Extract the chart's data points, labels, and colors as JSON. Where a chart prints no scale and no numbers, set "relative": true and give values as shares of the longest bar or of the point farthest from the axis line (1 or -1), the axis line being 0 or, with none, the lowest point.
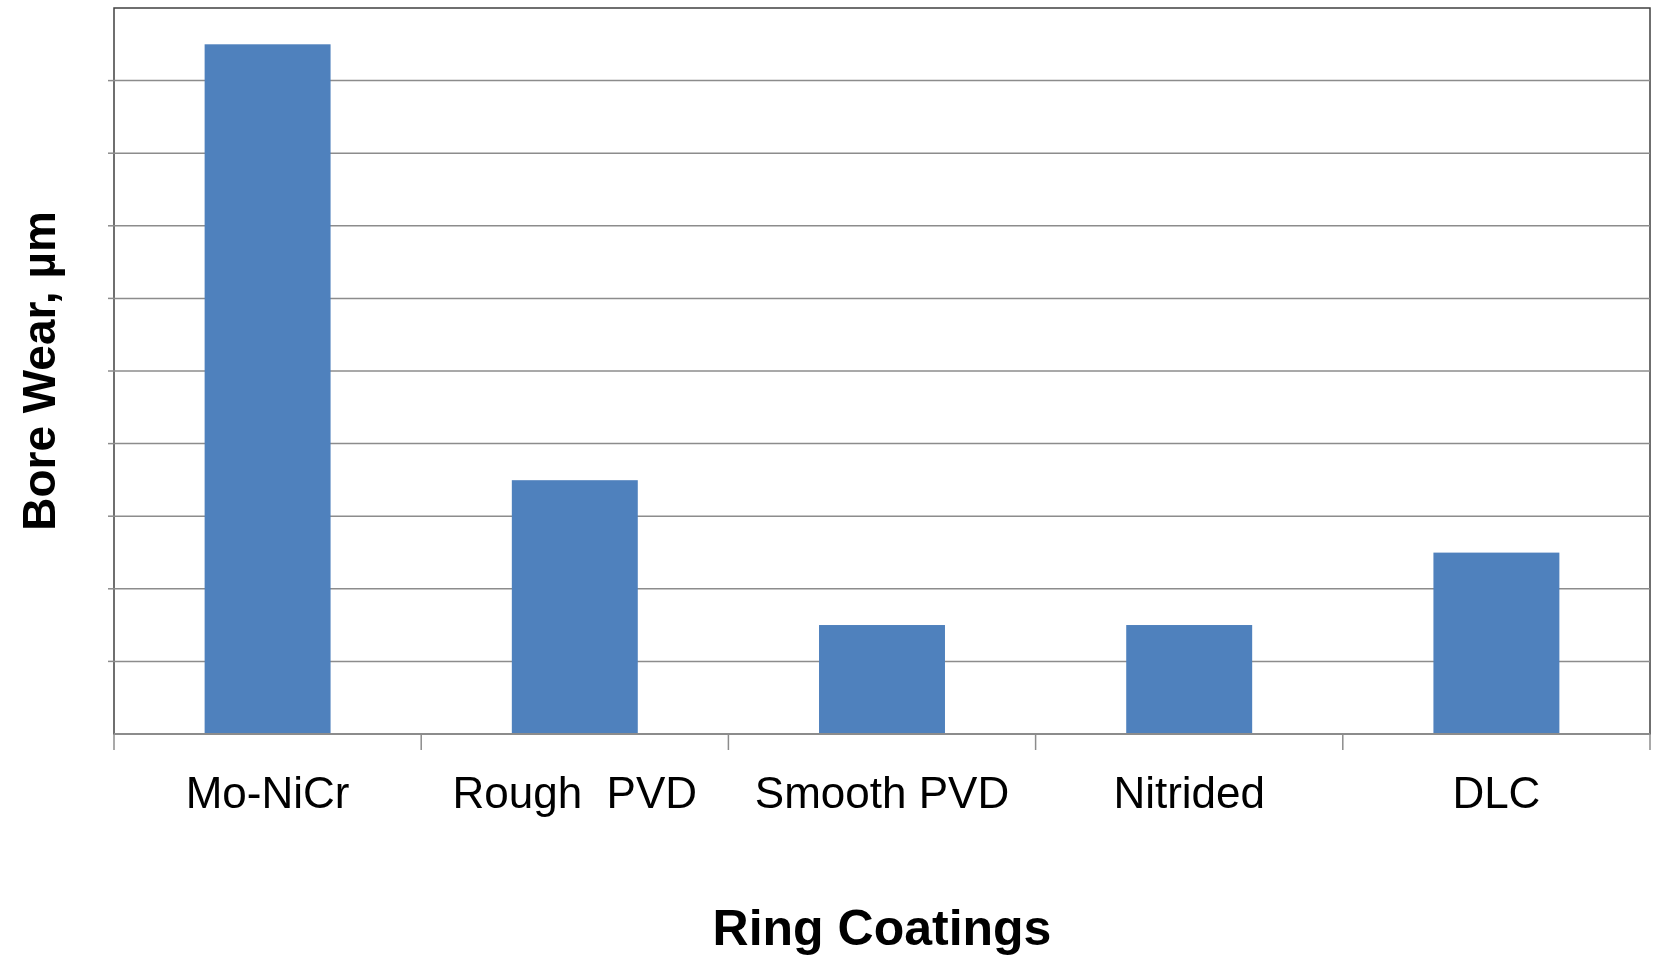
{
  "chart_data": {
    "type": "bar",
    "xlabel": "Ring Coatings",
    "ylabel": "Bore Wear, µm",
    "categories": [
      "Mo-NiCr",
      "Rough  PVD",
      "Smooth PVD",
      "Nitrided",
      "DLC"
    ],
    "values": [
      1,
      0.368,
      0.158,
      0.158,
      0.263
    ],
    "color": "#4f81bd",
    "relative": true,
    "grid": "y"
  }
}
